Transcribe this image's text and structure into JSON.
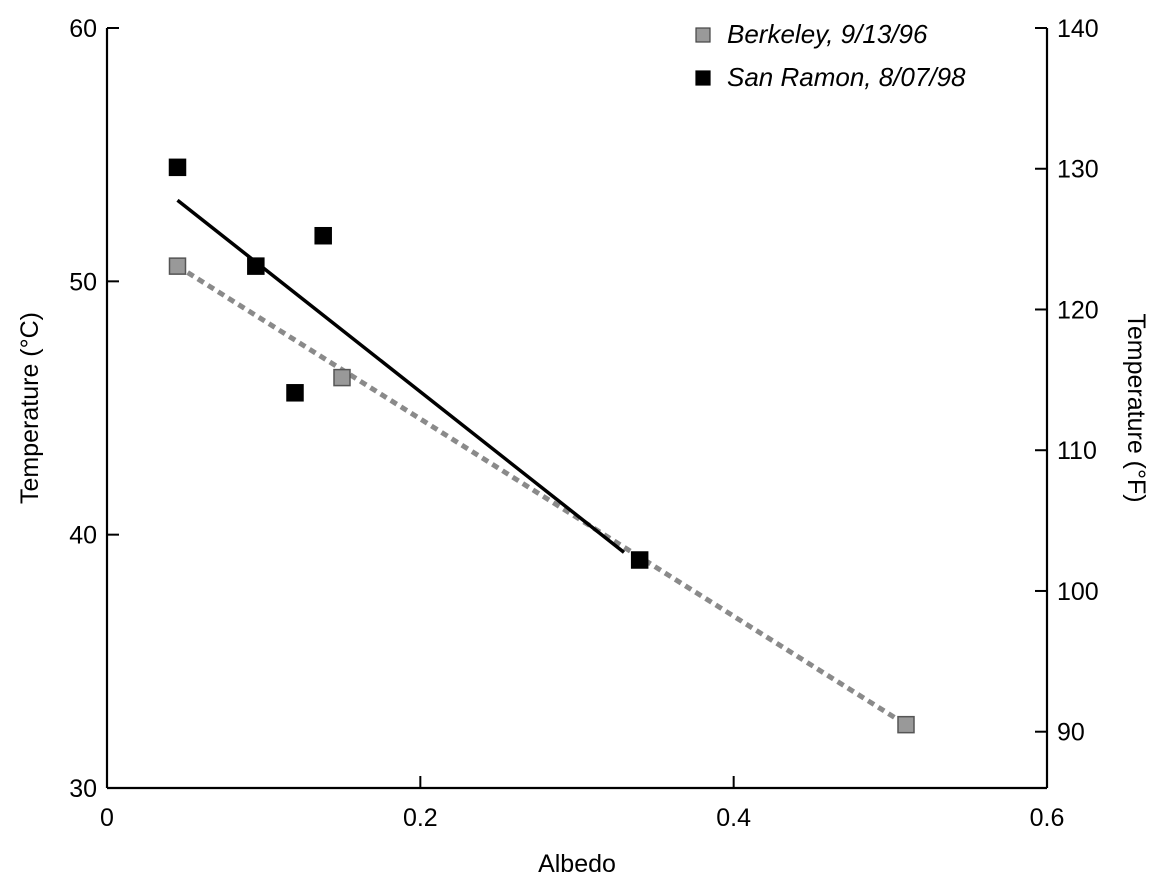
{
  "chart_data": {
    "type": "scatter",
    "xlabel": "Albedo",
    "ylabel": "Temperature (°C)",
    "y2label": "Temperature (°F)",
    "xlim": [
      0,
      0.6
    ],
    "ylim": [
      30,
      60
    ],
    "y2lim": [
      86,
      140
    ],
    "xticks": [
      "0",
      "0.2",
      "0.4",
      "0.6"
    ],
    "yticks": [
      "30",
      "40",
      "50",
      "60"
    ],
    "y2ticks": [
      "90",
      "100",
      "110",
      "120",
      "130",
      "140"
    ],
    "grid": false,
    "legend_position": "top-right",
    "series": [
      {
        "name": "Berkeley, 9/13/96",
        "color": "#999999",
        "marker": "square",
        "fit_line": "dashed",
        "x": [
          0.045,
          0.15,
          0.51
        ],
        "y": [
          50.6,
          46.2,
          32.5
        ],
        "fit": {
          "x": [
            0.045,
            0.51
          ],
          "y": [
            50.6,
            32.5
          ]
        }
      },
      {
        "name": "San Ramon, 8/07/98",
        "color": "#000000",
        "marker": "square",
        "fit_line": "solid",
        "x": [
          0.045,
          0.095,
          0.12,
          0.138,
          0.34
        ],
        "y": [
          54.5,
          50.6,
          45.6,
          51.8,
          39.0
        ],
        "fit": {
          "x": [
            0.045,
            0.33
          ],
          "y": [
            53.2,
            39.3
          ]
        }
      }
    ]
  }
}
